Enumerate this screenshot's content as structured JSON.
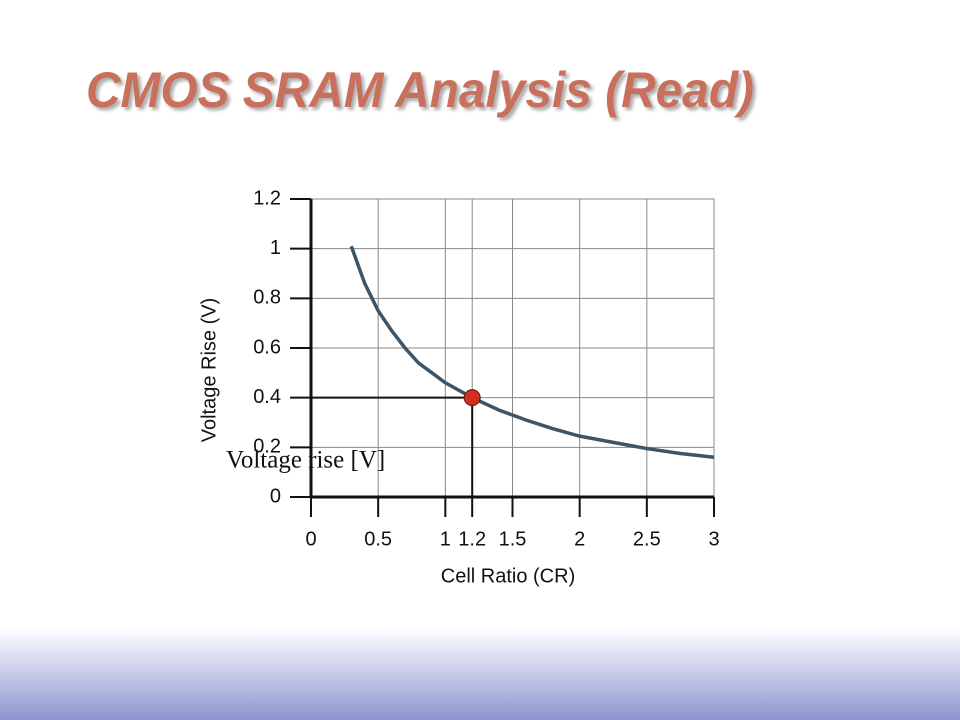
{
  "chart_data": {
    "type": "line",
    "title": "CMOS SRAM Analysis (Read)",
    "x_label": "Cell Ratio (CR)",
    "y_label": "Voltage Rise (V)",
    "annotation": "Voltage rise [V]",
    "x": [
      0.3,
      0.4,
      0.5,
      0.6,
      0.7,
      0.8,
      0.9,
      1.0,
      1.2,
      1.4,
      1.6,
      1.8,
      2.0,
      2.25,
      2.5,
      2.75,
      3.0
    ],
    "series": [
      {
        "color": "#3d5566",
        "values": [
          1.01,
          0.86,
          0.75,
          0.67,
          0.6,
          0.54,
          0.5,
          0.46,
          0.4,
          0.35,
          0.31,
          0.275,
          0.245,
          0.22,
          0.195,
          0.175,
          0.16
        ]
      }
    ],
    "highlight": {
      "x": 1.2,
      "y": 0.4,
      "color": "#d32f1e"
    },
    "xlim": [
      0,
      3
    ],
    "ylim": [
      0,
      1.2
    ],
    "xticks": [
      0,
      0.5,
      1,
      1.2,
      1.5,
      2,
      2.5,
      3
    ],
    "yticks": [
      0,
      0.2,
      0.4,
      0.6,
      0.8,
      1,
      1.2
    ],
    "grid": true
  }
}
